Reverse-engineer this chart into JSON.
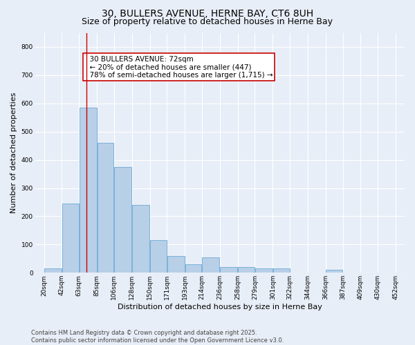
{
  "title_line1": "30, BULLERS AVENUE, HERNE BAY, CT6 8UH",
  "title_line2": "Size of property relative to detached houses in Herne Bay",
  "xlabel": "Distribution of detached houses by size in Herne Bay",
  "ylabel": "Number of detached properties",
  "footer_line1": "Contains HM Land Registry data © Crown copyright and database right 2025.",
  "footer_line2": "Contains public sector information licensed under the Open Government Licence v3.0.",
  "bar_left_edges": [
    20,
    42,
    63,
    85,
    106,
    128,
    150,
    171,
    193,
    214,
    236,
    258,
    279,
    301,
    322,
    344,
    366,
    387,
    409,
    430
  ],
  "bar_heights": [
    15,
    245,
    585,
    460,
    375,
    240,
    115,
    60,
    30,
    55,
    20,
    20,
    15,
    15,
    0,
    0,
    10,
    0,
    0,
    0
  ],
  "bar_color": "#b8cfe8",
  "bar_edge_color": "#6aaad4",
  "tick_labels": [
    "20sqm",
    "42sqm",
    "63sqm",
    "85sqm",
    "106sqm",
    "128sqm",
    "150sqm",
    "171sqm",
    "193sqm",
    "214sqm",
    "236sqm",
    "258sqm",
    "279sqm",
    "301sqm",
    "322sqm",
    "344sqm",
    "366sqm",
    "387sqm",
    "409sqm",
    "430sqm",
    "452sqm"
  ],
  "tick_positions": [
    20,
    42,
    63,
    85,
    106,
    128,
    150,
    171,
    193,
    214,
    236,
    258,
    279,
    301,
    322,
    344,
    366,
    387,
    409,
    430,
    452
  ],
  "ylim": [
    0,
    850
  ],
  "xlim": [
    9,
    463
  ],
  "yticks": [
    0,
    100,
    200,
    300,
    400,
    500,
    600,
    700,
    800
  ],
  "property_line_x": 72,
  "property_line_color": "#cc0000",
  "annotation_text": "  30 BULLERS AVENUE: 72sqm\n  ← 20% of detached houses are smaller (447)\n  78% of semi-detached houses are larger (1,715) →",
  "annotation_box_color": "#ffffff",
  "annotation_box_edge_color": "#cc0000",
  "background_color": "#e8eef7",
  "plot_bg_color": "#e8eef7",
  "grid_color": "#ffffff",
  "title_fontsize": 10,
  "subtitle_fontsize": 9,
  "axis_label_fontsize": 8,
  "tick_fontsize": 6.5,
  "annotation_fontsize": 7.5
}
